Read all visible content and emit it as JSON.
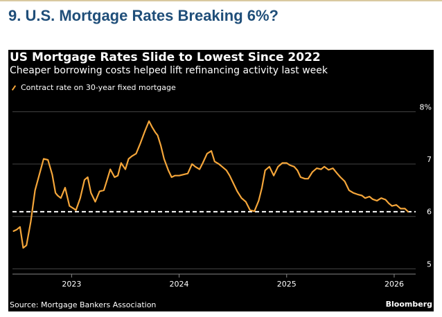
{
  "slide": {
    "title": "9. U.S. Mortgage Rates Breaking 6%?"
  },
  "colors": {
    "title_text": "#1f4e79",
    "panel_background": "#000000",
    "series_line": "#f5a63a",
    "reference_line": "#ffffff",
    "grid": "#444444"
  },
  "chart_data": {
    "type": "line",
    "title": "US Mortgage Rates Slide to Lowest Since 2022",
    "subtitle": "Cheaper borrowing costs helped lift refinancing activity last week",
    "source": "Source: Mortgage Bankers Association",
    "brand": "Bloomberg",
    "xlabel": "",
    "ylabel": "",
    "y_axis_position": "right",
    "y_unit_label": "8%",
    "ylim": [
      4.9,
      8.15
    ],
    "yticks": [
      {
        "value": 5,
        "label": "5"
      },
      {
        "value": 6,
        "label": "6"
      },
      {
        "value": 7,
        "label": "7"
      },
      {
        "value": 8,
        "label": "8%"
      }
    ],
    "xlim": [
      2022.45,
      2026.2
    ],
    "xticks": [
      {
        "value": 2023,
        "label": "2023"
      },
      {
        "value": 2024,
        "label": "2024"
      },
      {
        "value": 2025,
        "label": "2025"
      },
      {
        "value": 2026,
        "label": "2026"
      }
    ],
    "grid": "horizontal",
    "legend_position": "top-left",
    "reference_line": {
      "value": 6.09,
      "style": "dashed"
    },
    "series": [
      {
        "name": "Contract rate on 30-year fixed mortgage",
        "x": [
          2022.46,
          2022.49,
          2022.52,
          2022.55,
          2022.58,
          2022.62,
          2022.66,
          2022.7,
          2022.74,
          2022.78,
          2022.82,
          2022.85,
          2022.87,
          2022.9,
          2022.94,
          2022.98,
          2023.02,
          2023.04,
          2023.08,
          2023.12,
          2023.15,
          2023.18,
          2023.22,
          2023.26,
          2023.3,
          2023.33,
          2023.36,
          2023.4,
          2023.43,
          2023.46,
          2023.5,
          2023.53,
          2023.56,
          2023.6,
          2023.64,
          2023.68,
          2023.72,
          2023.75,
          2023.78,
          2023.8,
          2023.83,
          2023.86,
          2023.9,
          2023.93,
          2023.96,
          2024.0,
          2024.04,
          2024.08,
          2024.12,
          2024.15,
          2024.19,
          2024.22,
          2024.26,
          2024.3,
          2024.33,
          2024.37,
          2024.4,
          2024.44,
          2024.47,
          2024.5,
          2024.54,
          2024.58,
          2024.62,
          2024.66,
          2024.7,
          2024.74,
          2024.77,
          2024.8,
          2024.84,
          2024.88,
          2024.92,
          2024.96,
          2025.0,
          2025.03,
          2025.07,
          2025.1,
          2025.13,
          2025.17,
          2025.2,
          2025.24,
          2025.28,
          2025.32,
          2025.35,
          2025.39,
          2025.43,
          2025.47,
          2025.5,
          2025.54,
          2025.58,
          2025.62,
          2025.66,
          2025.7,
          2025.73,
          2025.77,
          2025.8,
          2025.84,
          2025.88,
          2025.92,
          2025.95,
          2025.98,
          2026.02,
          2026.06,
          2026.1,
          2026.13
        ],
        "y": [
          5.72,
          5.75,
          5.8,
          5.4,
          5.45,
          5.9,
          6.5,
          6.8,
          7.1,
          7.08,
          6.8,
          6.45,
          6.4,
          6.35,
          6.55,
          6.2,
          6.15,
          6.12,
          6.35,
          6.7,
          6.75,
          6.45,
          6.28,
          6.48,
          6.5,
          6.7,
          6.9,
          6.75,
          6.78,
          7.02,
          6.9,
          7.1,
          7.15,
          7.2,
          7.4,
          7.62,
          7.82,
          7.7,
          7.6,
          7.55,
          7.35,
          7.1,
          6.88,
          6.75,
          6.78,
          6.78,
          6.8,
          6.82,
          7.0,
          6.95,
          6.9,
          7.02,
          7.2,
          7.25,
          7.05,
          7.0,
          6.95,
          6.88,
          6.78,
          6.65,
          6.48,
          6.35,
          6.28,
          6.12,
          6.1,
          6.3,
          6.55,
          6.88,
          6.95,
          6.78,
          6.95,
          7.02,
          7.02,
          6.98,
          6.95,
          6.88,
          6.75,
          6.72,
          6.72,
          6.85,
          6.92,
          6.9,
          6.95,
          6.89,
          6.92,
          6.82,
          6.75,
          6.67,
          6.5,
          6.45,
          6.42,
          6.4,
          6.35,
          6.38,
          6.33,
          6.3,
          6.35,
          6.32,
          6.25,
          6.2,
          6.22,
          6.15,
          6.15,
          6.09
        ]
      }
    ]
  }
}
